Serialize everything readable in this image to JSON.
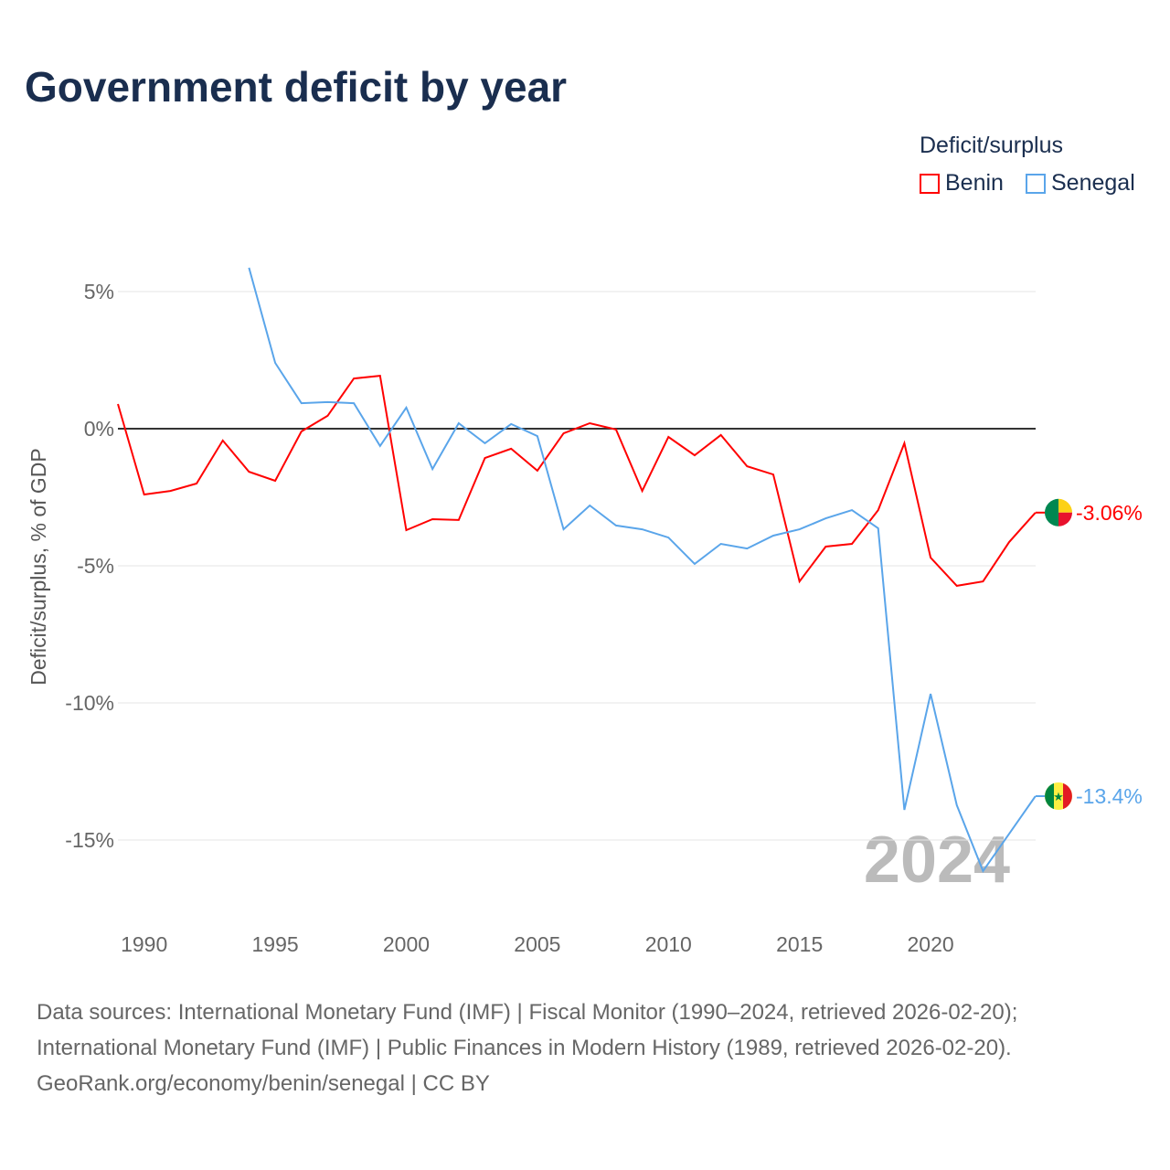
{
  "title": "Government deficit by year",
  "legend": {
    "title": "Deficit/surplus",
    "items": [
      {
        "label": "Benin",
        "color": "#ff0000"
      },
      {
        "label": "Senegal",
        "color": "#5aa5ea"
      }
    ]
  },
  "year_watermark": "2024",
  "source_lines": [
    "Data sources: International Monetary Fund (IMF) | Fiscal Monitor (1990–2024, retrieved 2026-02-20);",
    "International Monetary Fund (IMF) | Public Finances in Modern History (1989, retrieved 2026-02-20).",
    "GeoRank.org/economy/benin/senegal | CC BY"
  ],
  "chart_data": {
    "type": "line",
    "title": "Government deficit by year",
    "xlabel": "",
    "ylabel": "Deficit/surplus, % of GDP",
    "xlim": [
      1989,
      2024
    ],
    "ylim": [
      -17,
      7
    ],
    "x_ticks": [
      1990,
      1995,
      2000,
      2005,
      2010,
      2015,
      2020
    ],
    "y_ticks": [
      {
        "v": 5,
        "label": "5%"
      },
      {
        "v": 0,
        "label": "0%"
      },
      {
        "v": -5,
        "label": "-5%"
      },
      {
        "v": -10,
        "label": "-10%"
      },
      {
        "v": -15,
        "label": "-15%"
      }
    ],
    "series": [
      {
        "name": "Benin",
        "color": "#ff0000",
        "end_label": "-3.06%",
        "start": 1989,
        "values": [
          0.9,
          -2.4,
          -2.27,
          -2.0,
          -0.43,
          -1.57,
          -1.9,
          -0.1,
          0.47,
          1.83,
          1.93,
          -3.7,
          -3.3,
          -3.33,
          -1.07,
          -0.73,
          -1.53,
          -0.17,
          0.2,
          -0.03,
          -2.27,
          -0.3,
          -0.97,
          -0.23,
          -1.37,
          -1.67,
          -5.57,
          -4.3,
          -4.2,
          -2.97,
          -0.53,
          -4.7,
          -5.73,
          -5.57,
          -4.13,
          -3.06
        ]
      },
      {
        "name": "Senegal",
        "color": "#5aa5ea",
        "end_label": "-13.4%",
        "start": 1994,
        "values": [
          5.87,
          2.4,
          0.93,
          0.97,
          0.93,
          -0.63,
          0.77,
          -1.47,
          0.2,
          -0.53,
          0.17,
          -0.27,
          -3.67,
          -2.8,
          -3.53,
          -3.67,
          -3.97,
          -4.93,
          -4.2,
          -4.37,
          -3.9,
          -3.67,
          -3.27,
          -2.97,
          -3.63,
          -13.9,
          -9.67,
          -13.73,
          -16.13,
          -14.77,
          -13.4
        ]
      }
    ]
  }
}
